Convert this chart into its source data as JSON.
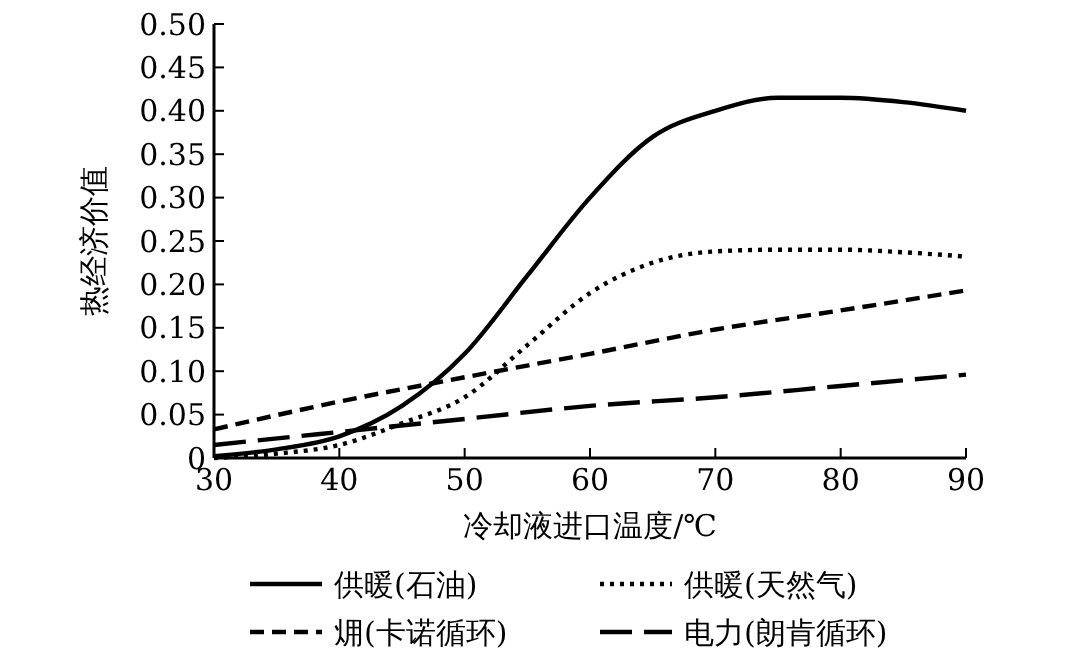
{
  "chart_data": {
    "type": "line",
    "xlabel": "冷却液进口温度/℃",
    "ylabel": "热经济价值",
    "xlim": [
      30,
      90
    ],
    "xticks": [
      30,
      40,
      50,
      60,
      70,
      80,
      90
    ],
    "ylim": [
      0,
      0.5
    ],
    "yticks": [
      {
        "value": 0,
        "label": "0"
      },
      {
        "value": 0.05,
        "label": "0.05"
      },
      {
        "value": 0.1,
        "label": "0.10"
      },
      {
        "value": 0.15,
        "label": "0.15"
      },
      {
        "value": 0.2,
        "label": "0.20"
      },
      {
        "value": 0.25,
        "label": "0.25"
      },
      {
        "value": 0.3,
        "label": "0.30"
      },
      {
        "value": 0.35,
        "label": "0.35"
      },
      {
        "value": 0.4,
        "label": "0.40"
      },
      {
        "value": 0.45,
        "label": "0.45"
      },
      {
        "value": 0.5,
        "label": "0.50"
      }
    ],
    "x": [
      30,
      35,
      40,
      45,
      50,
      55,
      60,
      65,
      70,
      75,
      80,
      85,
      90
    ],
    "series": [
      {
        "name": "供暖(石油)",
        "color": "#000000",
        "line_style": "solid",
        "values": [
          0.002,
          0.01,
          0.025,
          0.06,
          0.12,
          0.21,
          0.3,
          0.37,
          0.4,
          0.415,
          0.415,
          0.41,
          0.4
        ]
      },
      {
        "name": "供暖(天然气)",
        "color": "#000000",
        "line_style": "dotted",
        "values": [
          0,
          0.005,
          0.015,
          0.04,
          0.07,
          0.13,
          0.19,
          0.225,
          0.238,
          0.24,
          0.24,
          0.237,
          0.232
        ]
      },
      {
        "name": "㶲(卡诺循环)",
        "color": "#000000",
        "line_style": "dashed",
        "x": [
          30,
          40,
          50,
          60,
          70,
          80,
          90
        ],
        "values": [
          0.033,
          0.065,
          0.093,
          0.12,
          0.148,
          0.17,
          0.193
        ]
      },
      {
        "name": "电力(朗肯循环)",
        "color": "#000000",
        "line_style": "dashed",
        "x": [
          30,
          40,
          50,
          60,
          70,
          80,
          90
        ],
        "values": [
          0.015,
          0.03,
          0.045,
          0.06,
          0.07,
          0.083,
          0.096
        ]
      }
    ],
    "grid": false,
    "legend": "bottom"
  }
}
